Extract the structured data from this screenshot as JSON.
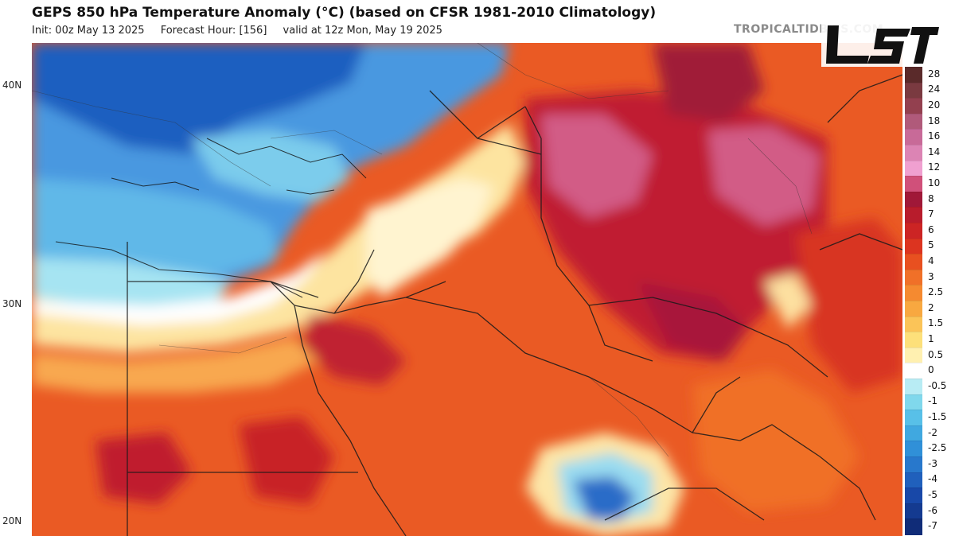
{
  "header": {
    "title": "GEPS 850 hPa Temperature Anomaly (°C) (based on CFSR 1981-2010 Climatology)",
    "init": "Init: 00z May 13 2025",
    "forecast_hour": "Forecast Hour: [156]",
    "valid": "valid at 12z Mon, May 19 2025",
    "site": "TROPICALTIDBITS.COM"
  },
  "map": {
    "lat_labels": [
      "40N",
      "30N",
      "20N"
    ]
  },
  "colorbar": {
    "labels": [
      "28",
      "24",
      "20",
      "18",
      "16",
      "14",
      "12",
      "10",
      "8",
      "7",
      "6",
      "5",
      "4",
      "3",
      "2.5",
      "2",
      "1.5",
      "1",
      "0.5",
      "0",
      "-0.5",
      "-1",
      "-1.5",
      "-2",
      "-2.5",
      "-3",
      "-4",
      "-5",
      "-6",
      "-7"
    ],
    "colors": [
      "#5a2a2a",
      "#7a3a40",
      "#93404f",
      "#b05a7a",
      "#c86a98",
      "#dc84b4",
      "#f0a0d0",
      "#d0507a",
      "#a01838",
      "#b81c2c",
      "#cc2424",
      "#dc3420",
      "#e85020",
      "#f07028",
      "#f58a30",
      "#f8a840",
      "#fbc458",
      "#fde07a",
      "#fff0b0",
      "#ffffff",
      "#b8ecf4",
      "#80d8ec",
      "#58c0e8",
      "#40a8e0",
      "#3090d8",
      "#2878cc",
      "#2060bc",
      "#1848a8",
      "#143a90",
      "#102c78"
    ]
  },
  "logo": {
    "text": "LST"
  }
}
